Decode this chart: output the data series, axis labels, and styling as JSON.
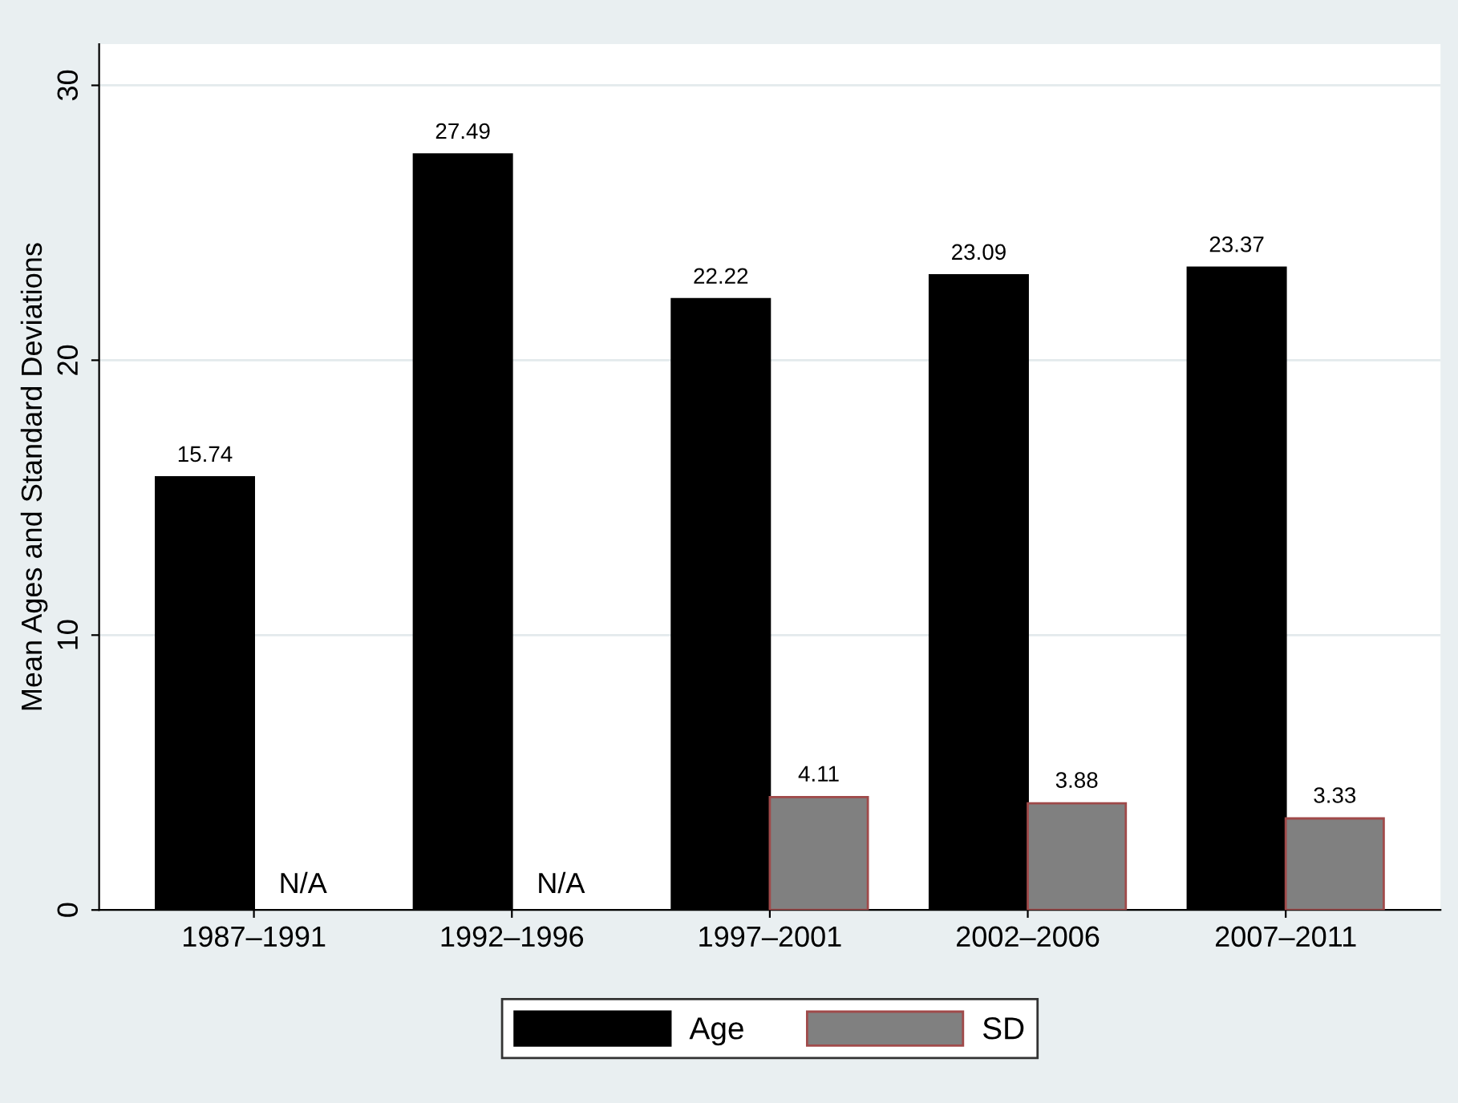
{
  "chart_data": {
    "type": "bar",
    "ylabel": "Mean Ages and Standard Deviations",
    "categories": [
      "1987–1991",
      "1992–1996",
      "1997–2001",
      "2002–2006",
      "2007–2011"
    ],
    "series": [
      {
        "name": "Age",
        "color": "#000000",
        "values": [
          15.74,
          27.49,
          22.22,
          23.09,
          23.37
        ],
        "value_labels": [
          "15.74",
          "27.49",
          "22.22",
          "23.09",
          "23.37"
        ]
      },
      {
        "name": "SD",
        "color": "#808080",
        "values": [
          null,
          null,
          4.11,
          3.88,
          3.33
        ],
        "value_labels": [
          "N/A",
          "N/A",
          "4.11",
          "3.88",
          "3.33"
        ]
      }
    ],
    "ylim": [
      0,
      31.5
    ],
    "yticks": [
      0,
      10,
      20,
      30
    ],
    "grid": "y",
    "legend": "bottom"
  }
}
